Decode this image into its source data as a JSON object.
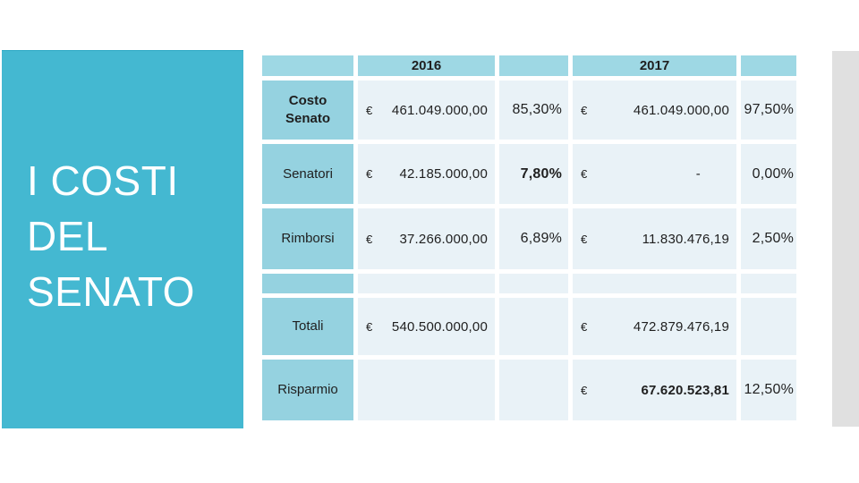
{
  "slide": {
    "title": "I COSTI\nDEL\nSENATO"
  },
  "colors": {
    "sidebar": "#44b8d1",
    "sidebar_edge": "#2aa8c4",
    "header_cell": "#9ed8e4",
    "label_cell": "#95d2e0",
    "data_cell": "#e9f2f7",
    "right_strip": "#e0e0e0",
    "text_dark": "#1f1f1f"
  },
  "table": {
    "year_2016": "2016",
    "year_2017": "2017",
    "rows": [
      {
        "label": "Costo Senato",
        "cur1": "€",
        "val1": "461.049.000,00",
        "pct1": "85,30%",
        "cur2": "€",
        "val2": "461.049.000,00",
        "pct2": "97,50%"
      },
      {
        "label": "Senatori",
        "cur1": "€",
        "val1": "42.185.000,00",
        "pct1": "7,80%",
        "cur2": "€",
        "val2": "-",
        "pct2": "0,00%"
      },
      {
        "label": "Rimborsi",
        "cur1": "€",
        "val1": "37.266.000,00",
        "pct1": "6,89%",
        "cur2": "€",
        "val2": "11.830.476,19",
        "pct2": "2,50%"
      },
      {
        "label": "",
        "cur1": "",
        "val1": "",
        "pct1": "",
        "cur2": "",
        "val2": "",
        "pct2": ""
      },
      {
        "label": "Totali",
        "cur1": "€",
        "val1": "540.500.000,00",
        "pct1": "",
        "cur2": "€",
        "val2": "472.879.476,19",
        "pct2": ""
      },
      {
        "label": "Risparmio",
        "cur1": "",
        "val1": "",
        "pct1": "",
        "cur2": "€",
        "val2": "67.620.523,81",
        "pct2": "12,50%"
      }
    ]
  }
}
